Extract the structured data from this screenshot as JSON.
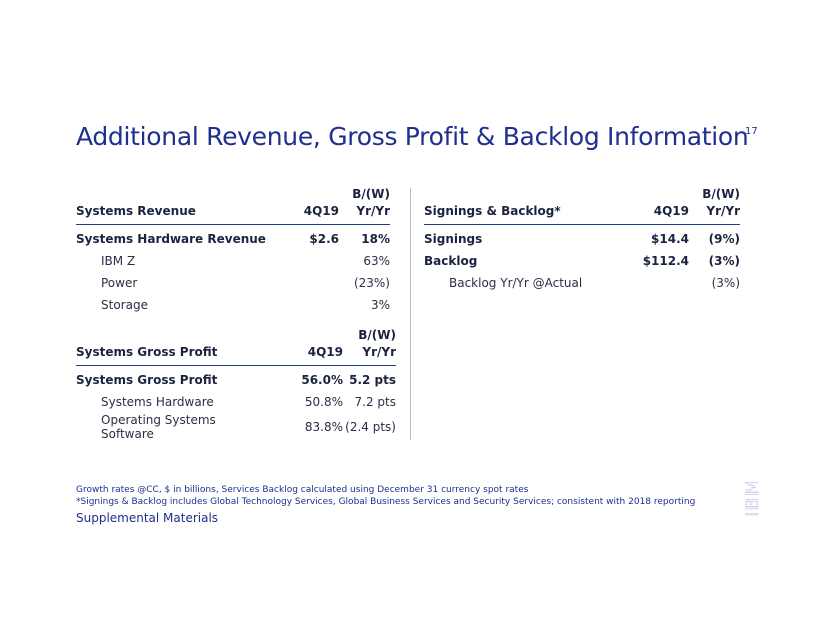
{
  "page": {
    "title": "Additional Revenue, Gross Profit & Backlog Information",
    "page_number": "17"
  },
  "systems_revenue": {
    "headers": {
      "label": "Systems Revenue",
      "period": "4Q19",
      "change_top": "B/(W)",
      "change_bottom": "Yr/Yr"
    },
    "rows": [
      {
        "label": "Systems Hardware Revenue",
        "value": "$2.6",
        "change": "18%",
        "bold": true,
        "indent": false
      },
      {
        "label": "IBM Z",
        "value": "",
        "change": "63%",
        "bold": false,
        "indent": true
      },
      {
        "label": "Power",
        "value": "",
        "change": "(23%)",
        "bold": false,
        "indent": true
      },
      {
        "label": "Storage",
        "value": "",
        "change": "3%",
        "bold": false,
        "indent": true
      }
    ]
  },
  "systems_gross_profit": {
    "headers": {
      "label": "Systems Gross Profit",
      "period": "4Q19",
      "change_top": "B/(W)",
      "change_bottom": "Yr/Yr"
    },
    "rows": [
      {
        "label": "Systems Gross Profit",
        "value": "56.0%",
        "change": "5.2 pts",
        "bold": true,
        "indent": false
      },
      {
        "label": "Systems Hardware",
        "value": "50.8%",
        "change": "7.2 pts",
        "bold": false,
        "indent": true
      },
      {
        "label": "Operating Systems Software",
        "value": "83.8%",
        "change": "(2.4 pts)",
        "bold": false,
        "indent": true
      }
    ]
  },
  "signings_backlog": {
    "headers": {
      "label": "Signings & Backlog*",
      "period": "4Q19",
      "change_top": "B/(W)",
      "change_bottom": "Yr/Yr"
    },
    "rows": [
      {
        "label": "Signings",
        "value": "$14.4",
        "change": "(9%)",
        "bold": true,
        "indent": false
      },
      {
        "label": "Backlog",
        "value": "$112.4",
        "change": "(3%)",
        "bold": true,
        "indent": false
      },
      {
        "label": "Backlog Yr/Yr @Actual",
        "value": "",
        "change": "(3%)",
        "bold": false,
        "indent": true
      }
    ]
  },
  "footer": {
    "note1": "Growth rates @CC, $ in billions, Services Backlog calculated using December 31 currency spot rates",
    "note2": "*Signings & Backlog includes Global Technology Services, Global Business Services and Security Services; consistent with 2018 reporting",
    "supplemental": "Supplemental Materials"
  },
  "logo": {
    "icon": "ibm-logo-icon",
    "text": "IBM"
  },
  "colors": {
    "title": "#1f2f8c",
    "rule": "#1f3c8c",
    "text": "#1c2340",
    "divider": "#b8bdcc"
  }
}
